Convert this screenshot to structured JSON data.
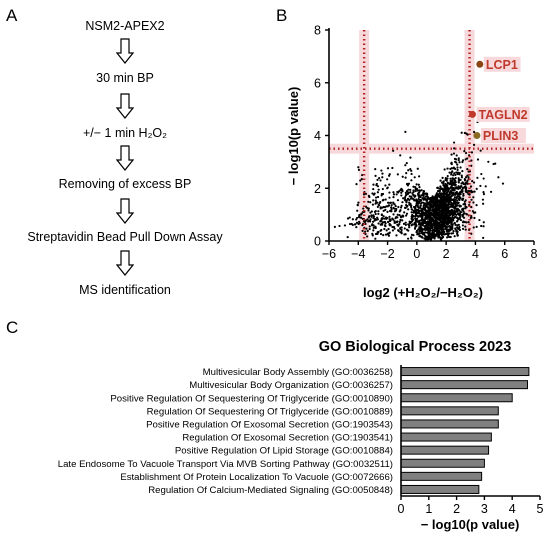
{
  "panels": {
    "a": "A",
    "b": "B",
    "c": "C"
  },
  "flow": {
    "steps": [
      "NSM2-APEX2",
      "30 min BP",
      "+/− 1 min H₂O₂",
      "Removing of excess BP",
      "Streptavidin Bead Pull Down Assay",
      "MS identification"
    ]
  },
  "volcano": {
    "chart_data": {
      "type": "scatter",
      "xlabel": "log2 (+H₂O₂/−H₂O₂)",
      "ylabel": "− log10(p value)",
      "xlim": [
        -6,
        8
      ],
      "ylim": [
        0,
        8
      ],
      "xticks": [
        "−6",
        "−4",
        "−2",
        "0",
        "2",
        "4",
        "6",
        "8"
      ],
      "yticks": [
        "0",
        "2",
        "4",
        "6",
        "8"
      ],
      "thresholds": {
        "x": [
          -3.6,
          3.6
        ],
        "y": 3.5
      },
      "highlighted": [
        {
          "label": "LCP1",
          "x": 4.3,
          "y": 6.7,
          "color": "#8b4513"
        },
        {
          "label": "TAGLN2",
          "x": 3.8,
          "y": 4.8,
          "color": "#c0392b"
        },
        {
          "label": "PLIN3",
          "x": 4.1,
          "y": 4.0,
          "color": "#8b6b23"
        }
      ],
      "point_color": "#000000",
      "threshold_color": "#b22222"
    }
  },
  "go": {
    "chart_data": {
      "type": "bar",
      "orientation": "horizontal",
      "title": "GO Biological Process 2023",
      "xlabel": "− log10(p value)",
      "xlim": [
        0,
        5
      ],
      "xticks": [
        "0",
        "1",
        "2",
        "3",
        "4",
        "5"
      ],
      "categories": [
        "Multivesicular Body Assembly (GO:0036258)",
        "Multivesicular Body Organization (GO:0036257)",
        "Positive Regulation Of Sequestering Of Triglyceride (GO:0010890)",
        "Regulation Of Sequestering Of Triglyceride (GO:0010889)",
        "Positive Regulation Of Exosomal Secretion (GO:1903543)",
        "Regulation Of Exosomal Secretion (GO:1903541)",
        "Positive Regulation Of Lipid Storage (GO:0010884)",
        "Late Endosome To Vacuole Transport Via MVB Sorting Pathway (GO:0032511)",
        "Establishment Of Protein Localization To Vacuole (GO:0072666)",
        "Regulation Of Calcium-Mediated Signaling (GO:0050848)"
      ],
      "values": [
        4.6,
        4.55,
        4.0,
        3.5,
        3.5,
        3.25,
        3.15,
        3.0,
        2.9,
        2.8
      ],
      "bar_color": "#808080"
    }
  }
}
